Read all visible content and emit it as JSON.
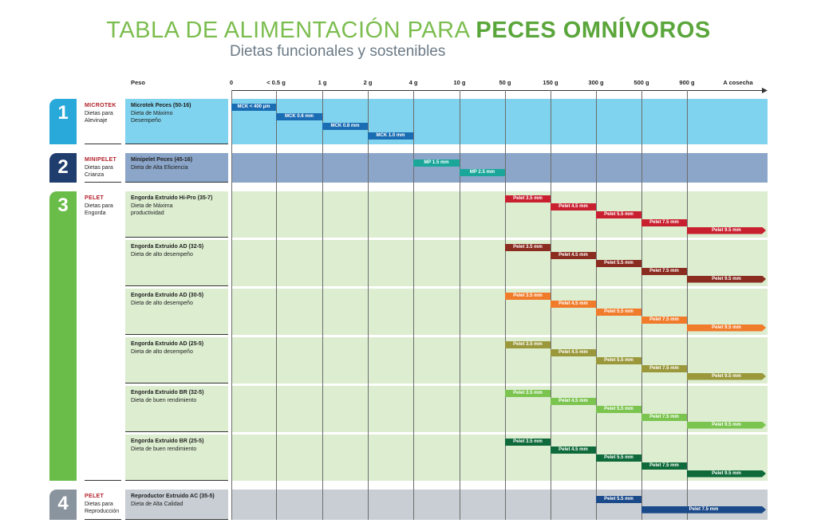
{
  "header": {
    "title_light": "TABLA DE ALIMENTACIÓN PARA",
    "title_bold": "PECES OMNÍVOROS",
    "subtitle": "Dietas funcionales y sostenibles"
  },
  "axis": {
    "label": "Peso",
    "ticks": [
      "0",
      "< 0.5 g",
      "1 g",
      "2 g",
      "4 g",
      "10 g",
      "50 g",
      "150 g",
      "300 g",
      "500 g",
      "900 g",
      "A cosecha"
    ]
  },
  "sections": [
    {
      "number": "1",
      "brand": "MICROTEK",
      "stage": "Dietas para Alevinaje",
      "color": "#7fd3ee",
      "accent": "#29a9da",
      "products": [
        {
          "name": "Microtek Peces (50-16)",
          "description": "Dieta de Máximo Desempeño",
          "bar_color": "#1b6db3",
          "bars": [
            {
              "label": "MCK < 400 µm",
              "from": "0",
              "to": "< 0.5 g"
            },
            {
              "label": "MCK 0.6 mm",
              "from": "< 0.5 g",
              "to": "1 g"
            },
            {
              "label": "MCK 0.8 mm",
              "from": "1 g",
              "to": "2 g"
            },
            {
              "label": "MCK 1.0 mm",
              "from": "2 g",
              "to": "4 g"
            }
          ]
        }
      ]
    },
    {
      "number": "2",
      "brand": "MINIPELET",
      "stage": "Dietas para Crianza",
      "color": "#8ba6c9",
      "accent": "#1f3d6d",
      "products": [
        {
          "name": "Minipelet Peces (45-16)",
          "description": "Dieta de Alta Eficiencia",
          "bar_color": "#1aa79a",
          "bars": [
            {
              "label": "MP 1.5 mm",
              "from": "4 g",
              "to": "10 g"
            },
            {
              "label": "MP 2.5 mm",
              "from": "10 g",
              "to": "50 g"
            }
          ]
        }
      ]
    },
    {
      "number": "3",
      "brand": "PELET",
      "stage": "Dietas para Engorda",
      "color": "#dcedd0",
      "accent": "#6bbd4a",
      "products": [
        {
          "name": "Engorda Extruido Hi-Pro (35-7)",
          "description": "Dieta de Máxima productividad",
          "bar_color": "#c8202f",
          "bars": [
            {
              "label": "Pelet 3.5 mm",
              "from": "50 g",
              "to": "150 g"
            },
            {
              "label": "Pelet 4.5 mm",
              "from": "150 g",
              "to": "300 g"
            },
            {
              "label": "Pelet 5.5 mm",
              "from": "300 g",
              "to": "500 g"
            },
            {
              "label": "Pelet 7.5 mm",
              "from": "500 g",
              "to": "900 g"
            },
            {
              "label": "Pelet 9.5 mm",
              "from": "900 g",
              "to": "A cosecha"
            }
          ]
        },
        {
          "name": "Engorda Extruido AD (32-5)",
          "description": "Dieta de alto desempeño",
          "bar_color": "#8a2c1f",
          "bars": [
            {
              "label": "Pelet 3.5 mm",
              "from": "50 g",
              "to": "150 g"
            },
            {
              "label": "Pelet 4.5 mm",
              "from": "150 g",
              "to": "300 g"
            },
            {
              "label": "Pelet 5.5 mm",
              "from": "300 g",
              "to": "500 g"
            },
            {
              "label": "Pelet 7.5 mm",
              "from": "500 g",
              "to": "900 g"
            },
            {
              "label": "Pelet 9.5 mm",
              "from": "900 g",
              "to": "A cosecha"
            }
          ]
        },
        {
          "name": "Engorda Extruido AD (30-5)",
          "description": "Dieta de alto desempeño",
          "bar_color": "#f07b2a",
          "bars": [
            {
              "label": "Pelet 3.5 mm",
              "from": "50 g",
              "to": "150 g"
            },
            {
              "label": "Pelet 4.5 mm",
              "from": "150 g",
              "to": "300 g"
            },
            {
              "label": "Pelet 5.5 mm",
              "from": "300 g",
              "to": "500 g"
            },
            {
              "label": "Pelet 7.5 mm",
              "from": "500 g",
              "to": "900 g"
            },
            {
              "label": "Pelet 9.5 mm",
              "from": "900 g",
              "to": "A cosecha"
            }
          ]
        },
        {
          "name": "Engorda Extruido AD (25-5)",
          "description": "Dieta de alto desempeño",
          "bar_color": "#9a983b",
          "bars": [
            {
              "label": "Pelet 3.5 mm",
              "from": "50 g",
              "to": "150 g"
            },
            {
              "label": "Pelet 4.5 mm",
              "from": "150 g",
              "to": "300 g"
            },
            {
              "label": "Pelet 5.5 mm",
              "from": "300 g",
              "to": "500 g"
            },
            {
              "label": "Pelet 7.5 mm",
              "from": "500 g",
              "to": "900 g"
            },
            {
              "label": "Pelet 9.5 mm",
              "from": "900 g",
              "to": "A cosecha"
            }
          ]
        },
        {
          "name": "Engorda Extruido BR (32-5)",
          "description": "Dieta de buen rendimiento",
          "bar_color": "#7bc44f",
          "bars": [
            {
              "label": "Pelet 3.5 mm",
              "from": "50 g",
              "to": "150 g"
            },
            {
              "label": "Pelet 4.5 mm",
              "from": "150 g",
              "to": "300 g"
            },
            {
              "label": "Pelet 5.5 mm",
              "from": "300 g",
              "to": "500 g"
            },
            {
              "label": "Pelet 7.5 mm",
              "from": "500 g",
              "to": "900 g"
            },
            {
              "label": "Pelet 9.5 mm",
              "from": "900 g",
              "to": "A cosecha"
            }
          ]
        },
        {
          "name": "Engorda Extruido BR (25-5)",
          "description": "Dieta de buen rendimiento",
          "bar_color": "#0e6a3a",
          "bars": [
            {
              "label": "Pelet 3.5 mm",
              "from": "50 g",
              "to": "150 g"
            },
            {
              "label": "Pelet 4.5 mm",
              "from": "150 g",
              "to": "300 g"
            },
            {
              "label": "Pelet 5.5 mm",
              "from": "300 g",
              "to": "500 g"
            },
            {
              "label": "Pelet 7.5 mm",
              "from": "500 g",
              "to": "900 g"
            },
            {
              "label": "Pelet 9.5 mm",
              "from": "900 g",
              "to": "A cosecha"
            }
          ]
        }
      ]
    },
    {
      "number": "4",
      "brand": "PELET",
      "stage": "Dietas para Reproducción",
      "color": "#c8ced4",
      "accent": "#8a949e",
      "products": [
        {
          "name": "Reproductor Extruido AC (35-5)",
          "description": "Dieta de Alta Calidad",
          "bar_color": "#1b4a8a",
          "bars": [
            {
              "label": "Pelet 5.5 mm",
              "from": "300 g",
              "to": "500 g"
            },
            {
              "label": "Pelet 7.5 mm",
              "from": "500 g",
              "to": "A cosecha"
            }
          ]
        }
      ]
    }
  ]
}
